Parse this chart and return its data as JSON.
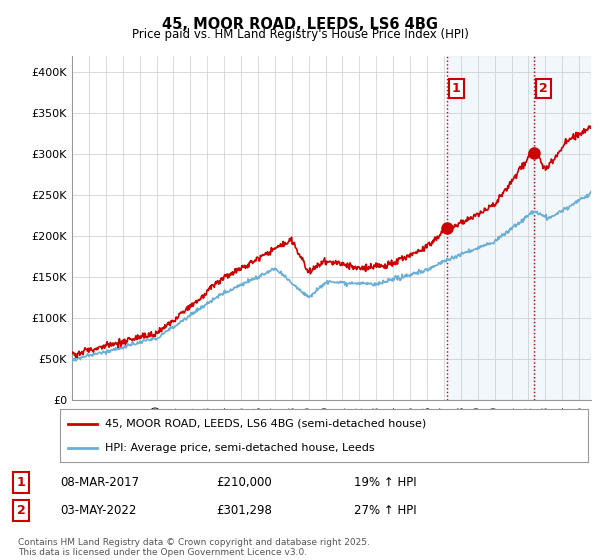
{
  "title": "45, MOOR ROAD, LEEDS, LS6 4BG",
  "subtitle": "Price paid vs. HM Land Registry's House Price Index (HPI)",
  "ylabel_ticks": [
    "£0",
    "£50K",
    "£100K",
    "£150K",
    "£200K",
    "£250K",
    "£300K",
    "£350K",
    "£400K"
  ],
  "ytick_values": [
    0,
    50000,
    100000,
    150000,
    200000,
    250000,
    300000,
    350000,
    400000
  ],
  "ylim": [
    0,
    420000
  ],
  "xlim_start": 1995.0,
  "xlim_end": 2025.7,
  "hpi_color": "#6baed6",
  "price_color": "#cc0000",
  "marker1_date": 2017.18,
  "marker1_price": 210000,
  "marker2_date": 2022.34,
  "marker2_price": 301298,
  "vline_color": "#cc0000",
  "shade_color": "#ddeeff",
  "legend_label_price": "45, MOOR ROAD, LEEDS, LS6 4BG (semi-detached house)",
  "legend_label_hpi": "HPI: Average price, semi-detached house, Leeds",
  "table_row1": [
    "1",
    "08-MAR-2017",
    "£210,000",
    "19% ↑ HPI"
  ],
  "table_row2": [
    "2",
    "03-MAY-2022",
    "£301,298",
    "27% ↑ HPI"
  ],
  "footnote": "Contains HM Land Registry data © Crown copyright and database right 2025.\nThis data is licensed under the Open Government Licence v3.0.",
  "background_color": "#ffffff",
  "plot_bg_color": "#ffffff"
}
